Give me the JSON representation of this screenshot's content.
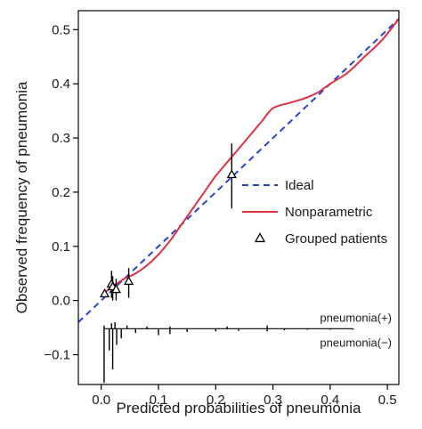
{
  "chart_data": {
    "type": "line",
    "title": "",
    "xlabel": "Predicted probabilities of pneumonia",
    "ylabel": "Observed frequency of pneumonia",
    "xlim": [
      -0.04,
      0.52
    ],
    "ylim": [
      -0.155,
      0.535
    ],
    "xticks": [
      0.0,
      0.1,
      0.2,
      0.3,
      0.4,
      0.5
    ],
    "xtick_labels": [
      "0.0",
      "0.1",
      "0.2",
      "0.3",
      "0.4",
      "0.5"
    ],
    "yticks": [
      -0.1,
      0.0,
      0.1,
      0.2,
      0.3,
      0.4,
      0.5
    ],
    "ytick_labels": [
      "−0.1",
      "0.0",
      "0.1",
      "0.2",
      "0.3",
      "0.4",
      "0.5"
    ],
    "grid": false,
    "legend_position": "center-right",
    "colors": {
      "ideal": "#2a3fd6",
      "nonparametric": "#e0303f",
      "grouped": "#000000",
      "axis": "#000000"
    },
    "series": [
      {
        "name": "Ideal",
        "style": "dashed",
        "x": [
          -0.04,
          0.52
        ],
        "y": [
          -0.04,
          0.52
        ]
      },
      {
        "name": "Nonparametric",
        "style": "solid",
        "x": [
          0.005,
          0.01,
          0.02,
          0.03,
          0.04,
          0.06,
          0.08,
          0.1,
          0.12,
          0.14,
          0.16,
          0.18,
          0.2,
          0.22,
          0.24,
          0.26,
          0.28,
          0.3,
          0.33,
          0.36,
          0.38,
          0.4,
          0.43,
          0.46,
          0.49,
          0.52
        ],
        "y": [
          0.01,
          0.018,
          0.027,
          0.033,
          0.04,
          0.05,
          0.065,
          0.085,
          0.11,
          0.14,
          0.17,
          0.2,
          0.23,
          0.255,
          0.28,
          0.305,
          0.33,
          0.355,
          0.365,
          0.375,
          0.385,
          0.4,
          0.42,
          0.45,
          0.48,
          0.52
        ]
      },
      {
        "name": "Grouped patients",
        "style": "triangle-points",
        "points": [
          {
            "x": 0.006,
            "y": 0.012,
            "ylow": 0.01,
            "yhigh": 0.016
          },
          {
            "x": 0.018,
            "y": 0.03,
            "ylow": 0.005,
            "yhigh": 0.055
          },
          {
            "x": 0.02,
            "y": 0.025,
            "ylow": 0.0,
            "yhigh": 0.045
          },
          {
            "x": 0.026,
            "y": 0.02,
            "ylow": 0.0,
            "yhigh": 0.04
          },
          {
            "x": 0.048,
            "y": 0.035,
            "ylow": 0.005,
            "yhigh": 0.06
          },
          {
            "x": 0.228,
            "y": 0.232,
            "ylow": 0.17,
            "yhigh": 0.29
          }
        ]
      }
    ],
    "rug": {
      "baseline_y": -0.052,
      "label_positive": "pneumonia(+)",
      "label_negative": "pneumonia(−)",
      "positive": [
        {
          "x": 0.005,
          "h": 0.006
        },
        {
          "x": 0.018,
          "h": 0.01
        },
        {
          "x": 0.024,
          "h": 0.012
        },
        {
          "x": 0.045,
          "h": 0.006
        },
        {
          "x": 0.08,
          "h": 0.004
        },
        {
          "x": 0.12,
          "h": 0.004
        },
        {
          "x": 0.22,
          "h": 0.004
        },
        {
          "x": 0.29,
          "h": 0.006
        }
      ],
      "negative": [
        {
          "x": 0.005,
          "h": 0.1
        },
        {
          "x": 0.014,
          "h": 0.04
        },
        {
          "x": 0.02,
          "h": 0.075
        },
        {
          "x": 0.027,
          "h": 0.03
        },
        {
          "x": 0.035,
          "h": 0.018
        },
        {
          "x": 0.06,
          "h": 0.008
        },
        {
          "x": 0.1,
          "h": 0.012
        },
        {
          "x": 0.12,
          "h": 0.01
        },
        {
          "x": 0.15,
          "h": 0.006
        },
        {
          "x": 0.2,
          "h": 0.005
        },
        {
          "x": 0.24,
          "h": 0.004
        },
        {
          "x": 0.29,
          "h": 0.005
        },
        {
          "x": 0.32,
          "h": 0.003
        },
        {
          "x": 0.36,
          "h": 0.002
        },
        {
          "x": 0.4,
          "h": 0.002
        },
        {
          "x": 0.44,
          "h": 0.002
        }
      ]
    }
  }
}
